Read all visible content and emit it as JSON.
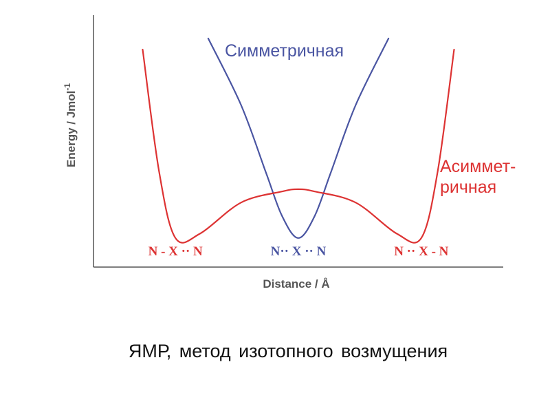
{
  "chart_data": {
    "type": "line",
    "xlabel": "Distance / Å",
    "ylabel": "Energy / Jmol",
    "ylabel_sup": "-1",
    "axis_color": "#555555",
    "grid": false,
    "series": [
      {
        "name": "Симметричная",
        "color": "#4a55a2",
        "shape": "single-well",
        "points": [
          [
            0.28,
            1.0
          ],
          [
            0.36,
            0.7
          ],
          [
            0.42,
            0.4
          ],
          [
            0.46,
            0.2
          ],
          [
            0.5,
            0.1
          ],
          [
            0.54,
            0.2
          ],
          [
            0.58,
            0.4
          ],
          [
            0.64,
            0.7
          ],
          [
            0.72,
            1.0
          ]
        ]
      },
      {
        "name_lines": [
          "Асиммет-",
          "ричная"
        ],
        "color": "#dd3333",
        "shape": "double-well",
        "points": [
          [
            0.12,
            0.95
          ],
          [
            0.16,
            0.4
          ],
          [
            0.2,
            0.1
          ],
          [
            0.26,
            0.12
          ],
          [
            0.36,
            0.26
          ],
          [
            0.46,
            0.31
          ],
          [
            0.5,
            0.32
          ],
          [
            0.54,
            0.31
          ],
          [
            0.64,
            0.26
          ],
          [
            0.74,
            0.12
          ],
          [
            0.8,
            0.1
          ],
          [
            0.84,
            0.4
          ],
          [
            0.88,
            0.95
          ]
        ]
      }
    ],
    "state_labels": [
      {
        "text": "N - X ·· N",
        "color": "#dd3333",
        "x": 0.2
      },
      {
        "text": "N·· X ·· N",
        "color": "#4a55a2",
        "x": 0.5
      },
      {
        "text": "N ·· X - N",
        "color": "#dd3333",
        "x": 0.8
      }
    ]
  },
  "caption": "ЯМР, метод изотопного возмущения"
}
